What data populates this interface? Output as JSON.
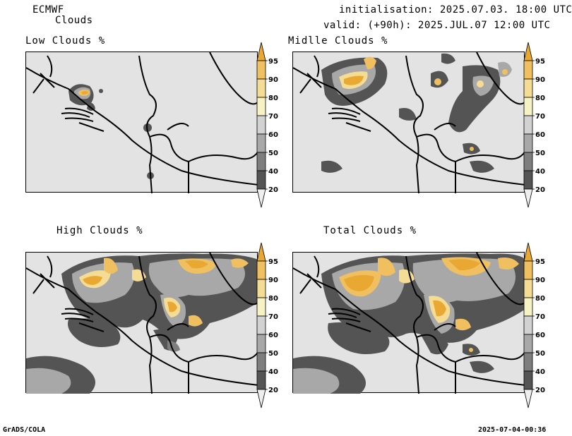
{
  "header": {
    "model": "ECMWF",
    "product": "Clouds",
    "init_line": "initialisation: 2025.07.03. 18:00 UTC",
    "valid_line": "valid: (+90h): 2025.JUL.07 12:00 UTC"
  },
  "panels": [
    {
      "title": "Low Clouds %"
    },
    {
      "title": "Midlle Clouds %"
    },
    {
      "title": "High Clouds %"
    },
    {
      "title": "Total Clouds %"
    }
  ],
  "colorbar": {
    "levels": [
      "95",
      "90",
      "80",
      "70",
      "60",
      "50",
      "40",
      "20"
    ],
    "colors": {
      "c95": "#e8a832",
      "c90": "#f0c060",
      "c80": "#f5dc94",
      "c70": "#f7f2c4",
      "c60": "#d2d2d2",
      "c50": "#a8a8a8",
      "c40": "#7e7e7e",
      "c20": "#545454",
      "below": "#eeeeee"
    }
  },
  "footer": {
    "left": "GrADS/COLA",
    "right": "2025-07-04-00:36"
  }
}
